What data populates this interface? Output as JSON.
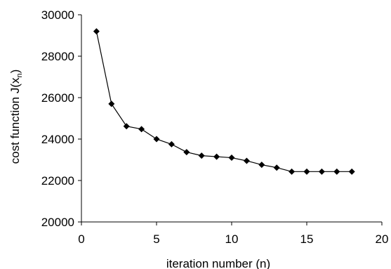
{
  "chart_data": {
    "type": "line",
    "xlabel": "iteration number (n)",
    "ylabel": {
      "prefix": "cost function J(x",
      "subscript": "n",
      "suffix": ")"
    },
    "xlim": [
      0,
      20
    ],
    "ylim": [
      20000,
      30000
    ],
    "xticks": [
      "0",
      "5",
      "10",
      "15",
      "20"
    ],
    "yticks": [
      "20000",
      "22000",
      "24000",
      "26000",
      "28000",
      "30000"
    ],
    "grid": false,
    "legend": "none",
    "marker": "diamond",
    "color": "#000000",
    "series": [
      {
        "x": [
          1,
          2,
          3,
          4,
          5,
          6,
          7,
          8,
          9,
          10,
          11,
          12,
          13,
          14,
          15,
          16,
          17,
          18
        ],
        "y": [
          29200,
          25700,
          24620,
          24480,
          24000,
          23750,
          23370,
          23200,
          23150,
          23100,
          22950,
          22760,
          22620,
          22430,
          22430,
          22430,
          22430,
          22430
        ]
      }
    ]
  }
}
